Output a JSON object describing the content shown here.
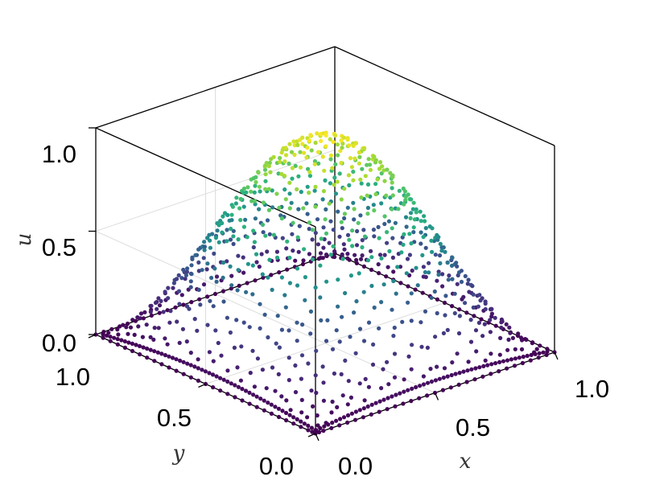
{
  "chart_data": {
    "type": "scatter",
    "subtype": "3d-scatter",
    "title": "",
    "xlabel": "x",
    "ylabel": "y",
    "zlabel": "u",
    "xlim": [
      0,
      1
    ],
    "ylim": [
      0,
      1
    ],
    "zlim": [
      0,
      1
    ],
    "x_ticks": [
      0.0,
      0.5,
      1.0
    ],
    "y_ticks": [
      0.0,
      0.5,
      1.0
    ],
    "z_ticks": [
      0.0,
      0.5,
      1.0
    ],
    "x_tick_labels": [
      "0.0",
      "0.5",
      "1.0"
    ],
    "y_tick_labels": [
      "0.0",
      "0.5",
      "1.0"
    ],
    "z_tick_labels": [
      "0.0",
      "0.5",
      "1.0"
    ],
    "grid": true,
    "legend": "none",
    "colormap": "viridis",
    "surface": "u = sin(πx)·sin(πy)",
    "point_samples": [
      {
        "x": 0.0,
        "y": 0.0,
        "u": 0.0
      },
      {
        "x": 0.5,
        "y": 0.5,
        "u": 1.0
      },
      {
        "x": 1.0,
        "y": 0.0,
        "u": 0.0
      },
      {
        "x": 0.0,
        "y": 1.0,
        "u": 0.0
      },
      {
        "x": 1.0,
        "y": 1.0,
        "u": 0.0
      },
      {
        "x": 0.5,
        "y": 0.0,
        "u": 0.0
      },
      {
        "x": 0.0,
        "y": 0.5,
        "u": 0.0
      },
      {
        "x": 0.25,
        "y": 0.25,
        "u": 0.5
      },
      {
        "x": 0.75,
        "y": 0.75,
        "u": 0.5
      }
    ],
    "colors": {
      "viridis_low": "#440154",
      "viridis_mid": "#21918c",
      "viridis_high": "#fde725",
      "grid": "#dddddd",
      "axes": "#000000"
    }
  }
}
